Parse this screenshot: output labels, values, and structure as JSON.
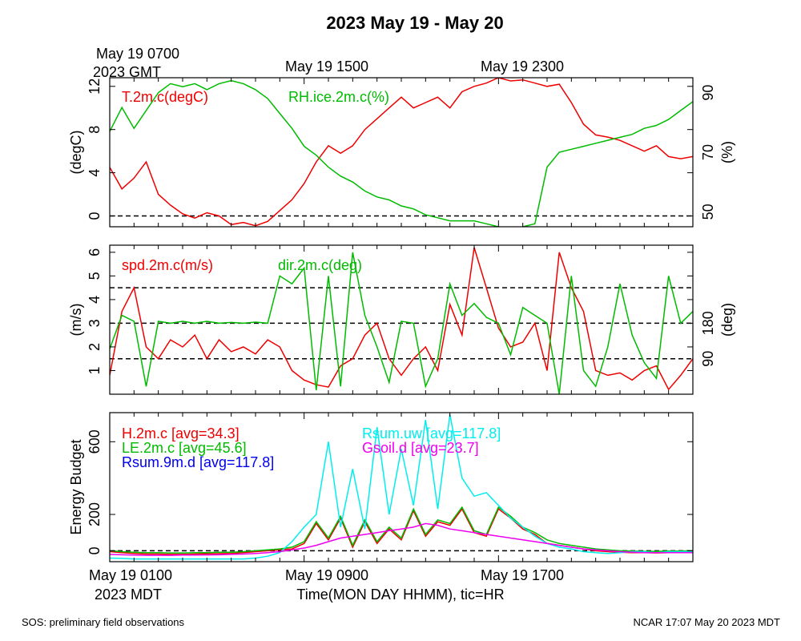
{
  "title": "2023 May 19 - May 20",
  "top_axis": {
    "label_line1": "May 19 0700",
    "label_line2": "2023 GMT",
    "ticks": [
      "May 19 1500",
      "May 19 2300"
    ]
  },
  "bottom_axis": {
    "ticks": [
      "May 19 0100",
      "May 19 0900",
      "May 19 1700"
    ],
    "tz_label": "2023 MDT",
    "xlabel": "Time(MON DAY HHMM), tic=HR"
  },
  "footer": {
    "left": "SOS: preliminary field observations",
    "right": "NCAR 17:07 May 20 2023 MDT"
  },
  "colors": {
    "red": "#ee0000",
    "green": "#00bb00",
    "blue": "#0000ee",
    "cyan": "#00eeee",
    "magenta": "#ee00ee",
    "axis": "#000000"
  },
  "chart_data": [
    {
      "type": "line",
      "panel": "temperature-humidity",
      "x_range_hours": [
        0,
        24
      ],
      "ylabel_left": "(degC)",
      "ylabel_right": "(%)",
      "ylim_left": [
        -1,
        12.8
      ],
      "ylim_right": [
        45,
        95
      ],
      "yticks_left": [
        "0",
        "4",
        "8",
        "12"
      ],
      "yticks_right": [
        "50",
        "70",
        "90"
      ],
      "reference_lines": [
        {
          "axis": "left",
          "value": 0,
          "style": "dashed"
        }
      ],
      "series": [
        {
          "name": "T.2m.c(degC)",
          "axis": "left",
          "color": "red",
          "x": [
            0,
            0.5,
            1,
            1.5,
            2,
            2.5,
            3,
            3.5,
            4,
            4.5,
            5,
            5.5,
            6,
            6.5,
            7,
            7.5,
            8,
            8.5,
            9,
            9.5,
            10,
            10.5,
            11,
            11.5,
            12,
            12.5,
            13,
            13.5,
            14,
            14.5,
            15,
            15.5,
            16,
            16.5,
            17,
            17.5,
            18,
            18.5,
            19,
            19.5,
            20,
            20.5,
            21,
            21.5,
            22,
            22.5,
            23,
            23.5,
            24
          ],
          "values": [
            4.5,
            2.5,
            3.5,
            5.0,
            2.0,
            1.0,
            0.2,
            -0.2,
            0.3,
            0.0,
            -0.8,
            -0.6,
            -0.9,
            -0.5,
            0.5,
            1.5,
            3.0,
            5.0,
            6.5,
            5.8,
            6.5,
            8.0,
            9.0,
            10.0,
            11.0,
            10.0,
            10.5,
            11.0,
            10.0,
            11.5,
            12.0,
            12.3,
            12.8,
            12.5,
            12.6,
            12.3,
            12.0,
            12.2,
            10.5,
            8.5,
            7.5,
            7.3,
            7.0,
            6.5,
            6.0,
            6.5,
            5.5,
            5.3,
            5.5
          ]
        },
        {
          "name": "RH.ice.2m.c(%)",
          "axis": "right",
          "color": "green",
          "x": [
            0,
            0.5,
            1,
            1.5,
            2,
            2.5,
            3,
            3.5,
            4,
            4.5,
            5,
            5.5,
            6,
            6.5,
            7,
            7.5,
            8,
            8.5,
            9,
            9.5,
            10,
            10.5,
            11,
            11.5,
            12,
            12.5,
            13,
            13.5,
            14,
            14.5,
            15,
            15.5,
            16,
            16.5,
            17,
            17.5,
            18,
            18.5,
            19,
            19.5,
            20,
            20.5,
            21,
            21.5,
            22,
            22.5,
            23,
            23.5,
            24
          ],
          "values": [
            77,
            85,
            78,
            84,
            90,
            93,
            92,
            93,
            91,
            93,
            94,
            93,
            91,
            88,
            83,
            78,
            72,
            69,
            65,
            62,
            60,
            57,
            55,
            54,
            52,
            51,
            49,
            48,
            47,
            47,
            47,
            46,
            45,
            44,
            45,
            46,
            65,
            70,
            71,
            72,
            73,
            74,
            75,
            76,
            78,
            79,
            81,
            84,
            87
          ]
        }
      ]
    },
    {
      "type": "line",
      "panel": "wind",
      "x_range_hours": [
        0,
        24
      ],
      "ylabel_left": "(m/s)",
      "ylabel_right": "(deg)",
      "ylim_left": [
        0,
        6.3
      ],
      "ylim_right": [
        0,
        378
      ],
      "yticks_left": [
        "1",
        "2",
        "3",
        "4",
        "5",
        "6"
      ],
      "yticks_right": [
        "90",
        "180"
      ],
      "reference_lines": [
        {
          "axis": "right",
          "value": 90,
          "style": "dashed"
        },
        {
          "axis": "right",
          "value": 180,
          "style": "dashed"
        },
        {
          "axis": "right",
          "value": 270,
          "style": "dashed"
        }
      ],
      "series": [
        {
          "name": "spd.2m.c(m/s)",
          "axis": "left",
          "color": "red",
          "x": [
            0,
            0.5,
            1,
            1.5,
            2,
            2.5,
            3,
            3.5,
            4,
            4.5,
            5,
            5.5,
            6,
            6.5,
            7,
            7.5,
            8,
            8.5,
            9,
            9.5,
            10,
            10.5,
            11,
            11.5,
            12,
            12.5,
            13,
            13.5,
            14,
            14.5,
            15,
            15.5,
            16,
            16.5,
            17,
            17.5,
            18,
            18.5,
            19,
            19.5,
            20,
            20.5,
            21,
            21.5,
            22,
            22.5,
            23,
            23.5,
            24
          ],
          "values": [
            0.8,
            3.5,
            4.5,
            2.0,
            1.5,
            2.3,
            2.0,
            2.5,
            1.5,
            2.3,
            1.8,
            2.0,
            1.7,
            2.3,
            2.0,
            1.0,
            0.6,
            0.4,
            0.3,
            1.2,
            1.5,
            2.5,
            3.0,
            1.5,
            0.8,
            1.5,
            2.0,
            1.0,
            3.8,
            2.5,
            6.2,
            4.5,
            2.8,
            2.0,
            2.2,
            3.0,
            1.0,
            6.0,
            4.5,
            3.5,
            1.0,
            0.8,
            0.9,
            0.6,
            1.0,
            1.2,
            0.2,
            0.8,
            1.5
          ]
        },
        {
          "name": "dir.2m.c(deg)",
          "axis": "right",
          "color": "green",
          "x": [
            0,
            0.5,
            1,
            1.5,
            2,
            2.5,
            3,
            3.5,
            4,
            4.5,
            5,
            5.5,
            6,
            6.5,
            7,
            7.5,
            8,
            8.5,
            9,
            9.5,
            10,
            10.5,
            11,
            11.5,
            12,
            12.5,
            13,
            13.5,
            14,
            14.5,
            15,
            15.5,
            16,
            16.5,
            17,
            17.5,
            18,
            18.5,
            19,
            19.5,
            20,
            20.5,
            21,
            21.5,
            22,
            22.5,
            23,
            23.5,
            24
          ],
          "values": [
            115,
            200,
            185,
            20,
            185,
            180,
            185,
            180,
            185,
            180,
            182,
            180,
            183,
            180,
            300,
            280,
            320,
            10,
            300,
            20,
            360,
            200,
            120,
            30,
            185,
            180,
            20,
            90,
            280,
            200,
            230,
            195,
            180,
            100,
            220,
            200,
            180,
            0,
            300,
            60,
            20,
            120,
            280,
            150,
            80,
            40,
            300,
            180,
            210
          ]
        }
      ]
    },
    {
      "type": "line",
      "panel": "energy-budget",
      "x_range_hours": [
        0,
        24
      ],
      "ylabel_left": "Energy Budget",
      "ylim_left": [
        -60,
        760
      ],
      "yticks_left": [
        "0",
        "200",
        "600"
      ],
      "reference_lines": [
        {
          "axis": "left",
          "value": 0,
          "style": "dashed"
        }
      ],
      "series": [
        {
          "name": "H.2m.c",
          "legend": "H.2m.c [avg=34.3]",
          "color": "red",
          "x": [
            0,
            0.5,
            1,
            1.5,
            2,
            2.5,
            3,
            3.5,
            4,
            4.5,
            5,
            5.5,
            6,
            6.5,
            7,
            7.5,
            8,
            8.5,
            9,
            9.5,
            10,
            10.5,
            11,
            11.5,
            12,
            12.5,
            13,
            13.5,
            14,
            14.5,
            15,
            15.5,
            16,
            16.5,
            17,
            17.5,
            18,
            18.5,
            19,
            19.5,
            20,
            20.5,
            21,
            21.5,
            22,
            22.5,
            23,
            23.5,
            24
          ],
          "values": [
            -5,
            -10,
            -15,
            -18,
            -18,
            -20,
            -20,
            -18,
            -17,
            -16,
            -15,
            -10,
            -5,
            0,
            5,
            10,
            40,
            150,
            60,
            180,
            20,
            160,
            40,
            120,
            60,
            220,
            80,
            160,
            140,
            230,
            100,
            80,
            230,
            180,
            120,
            90,
            40,
            30,
            20,
            10,
            0,
            -5,
            -8,
            -10,
            -10,
            -12,
            -10,
            -8,
            -5
          ]
        },
        {
          "name": "LE.2m.c",
          "legend": "LE.2m.c [avg=45.6]",
          "color": "green",
          "x": [
            0,
            0.5,
            1,
            1.5,
            2,
            2.5,
            3,
            3.5,
            4,
            4.5,
            5,
            5.5,
            6,
            6.5,
            7,
            7.5,
            8,
            8.5,
            9,
            9.5,
            10,
            10.5,
            11,
            11.5,
            12,
            12.5,
            13,
            13.5,
            14,
            14.5,
            15,
            15.5,
            16,
            16.5,
            17,
            17.5,
            18,
            18.5,
            19,
            19.5,
            20,
            20.5,
            21,
            21.5,
            22,
            22.5,
            23,
            23.5,
            24
          ],
          "values": [
            0,
            -5,
            -8,
            -10,
            -10,
            -12,
            -12,
            -10,
            -10,
            -8,
            -8,
            -5,
            0,
            5,
            10,
            20,
            50,
            160,
            70,
            190,
            30,
            170,
            50,
            130,
            70,
            230,
            90,
            170,
            150,
            240,
            110,
            90,
            240,
            190,
            130,
            100,
            60,
            40,
            30,
            20,
            10,
            5,
            0,
            -2,
            -3,
            -3,
            -2,
            -2,
            0
          ]
        },
        {
          "name": "Rsum.9m.d",
          "legend": "Rsum.9m.d [avg=117.8]",
          "color": "blue",
          "x": [],
          "values": []
        },
        {
          "name": "Rsum.uw",
          "legend": "Rsum.uw [avg=117.8]",
          "color": "cyan",
          "x": [
            0,
            0.5,
            1,
            1.5,
            2,
            2.5,
            3,
            3.5,
            4,
            4.5,
            5,
            5.5,
            6,
            6.5,
            7,
            7.5,
            8,
            8.5,
            9,
            9.5,
            10,
            10.5,
            11,
            11.5,
            12,
            12.5,
            13,
            13.5,
            14,
            14.5,
            15,
            15.5,
            16,
            16.5,
            17,
            17.5,
            18,
            18.5,
            19,
            19.5,
            20,
            20.5,
            21,
            21.5,
            22,
            22.5,
            23,
            23.5,
            24
          ],
          "values": [
            -40,
            -42,
            -45,
            -45,
            -45,
            -45,
            -45,
            -45,
            -45,
            -45,
            -45,
            -45,
            -40,
            -30,
            -10,
            50,
            130,
            200,
            600,
            130,
            450,
            120,
            680,
            200,
            560,
            250,
            720,
            230,
            750,
            400,
            300,
            320,
            250,
            180,
            130,
            80,
            40,
            20,
            10,
            -5,
            -10,
            -15,
            -10,
            -5,
            -5,
            -10,
            -5,
            -5,
            -5
          ]
        },
        {
          "name": "Gsoil.d",
          "legend": "Gsoil.d [avg=23.7]",
          "color": "magenta",
          "x": [
            0,
            0.5,
            1,
            1.5,
            2,
            2.5,
            3,
            3.5,
            4,
            4.5,
            5,
            5.5,
            6,
            6.5,
            7,
            7.5,
            8,
            8.5,
            9,
            9.5,
            10,
            10.5,
            11,
            11.5,
            12,
            12.5,
            13,
            13.5,
            14,
            14.5,
            15,
            15.5,
            16,
            16.5,
            17,
            17.5,
            18,
            18.5,
            19,
            19.5,
            20,
            20.5,
            21,
            21.5,
            22,
            22.5,
            23,
            23.5,
            24
          ],
          "values": [
            -20,
            -22,
            -24,
            -25,
            -25,
            -25,
            -24,
            -24,
            -23,
            -22,
            -20,
            -18,
            -15,
            -10,
            -5,
            5,
            15,
            30,
            50,
            70,
            80,
            90,
            100,
            110,
            120,
            130,
            150,
            140,
            120,
            110,
            100,
            90,
            80,
            70,
            60,
            50,
            40,
            30,
            20,
            10,
            5,
            0,
            -5,
            -8,
            -10,
            -10,
            -10,
            -10,
            -10
          ]
        }
      ]
    }
  ]
}
